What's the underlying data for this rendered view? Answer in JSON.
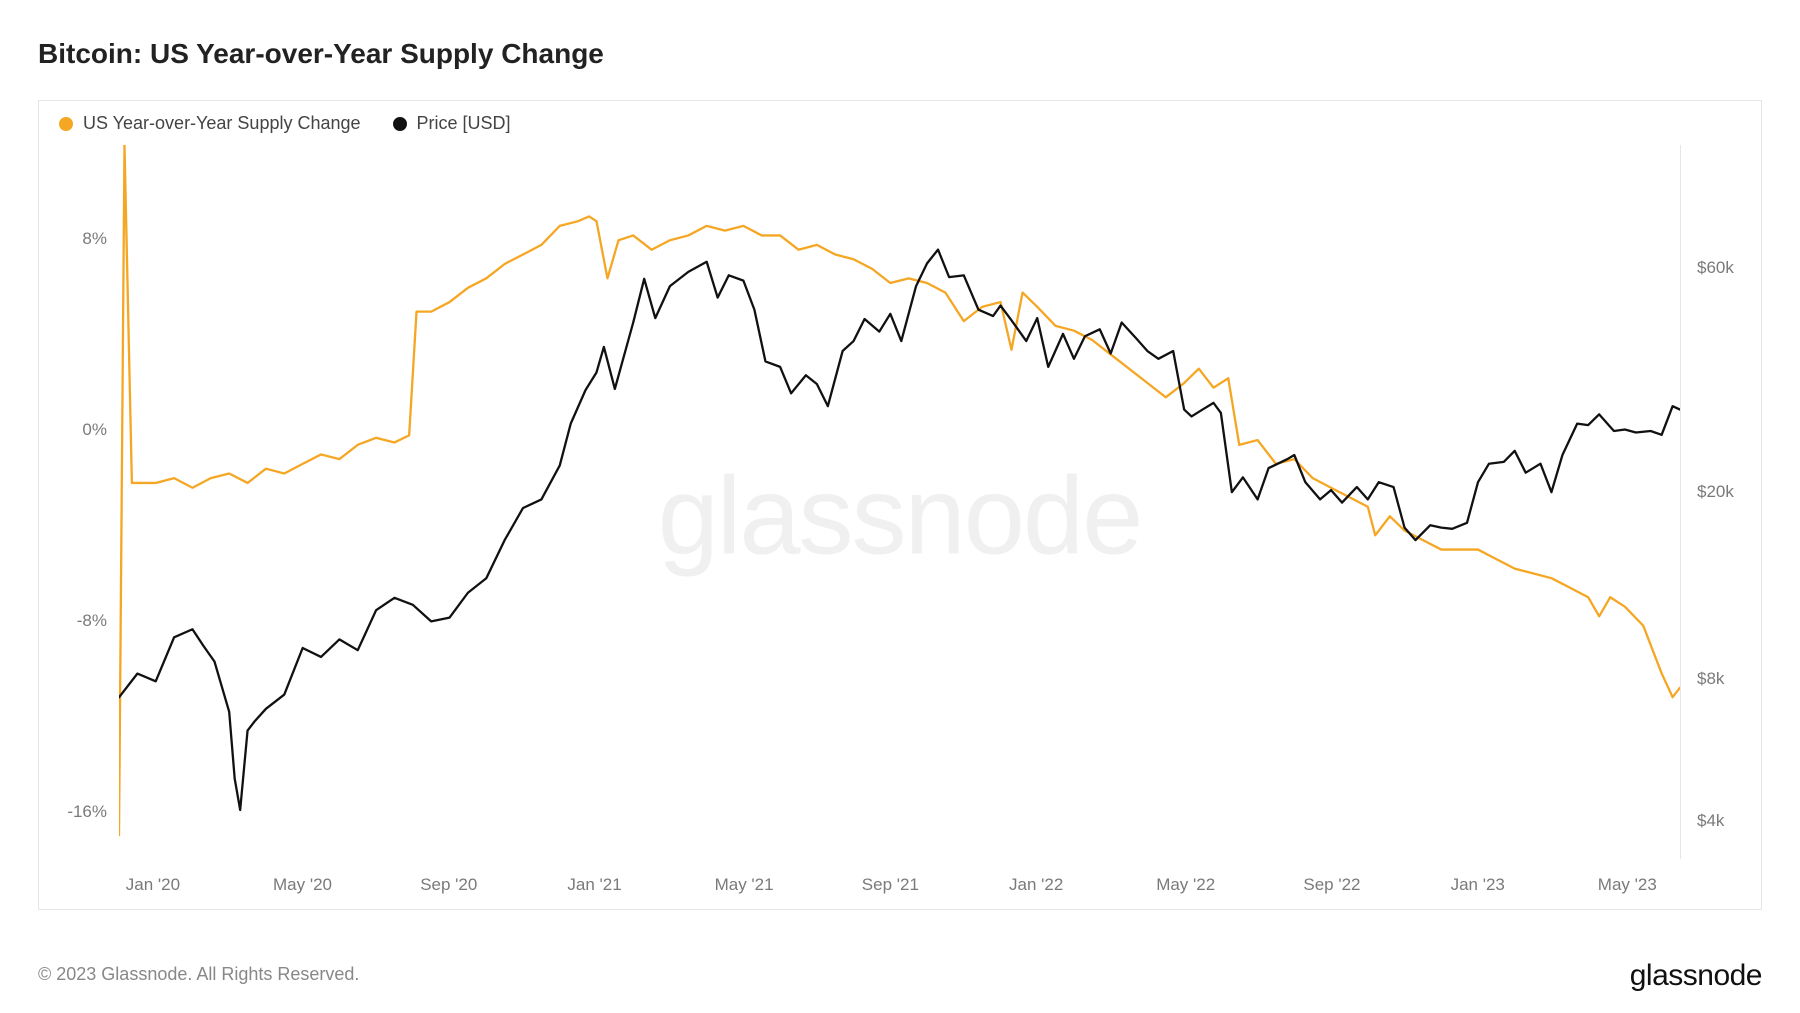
{
  "title": "Bitcoin: US Year-over-Year Supply Change",
  "watermark": "glassnode",
  "footer": "© 2023 Glassnode. All Rights Reserved.",
  "brand": "glassnode",
  "chart": {
    "type": "line",
    "background_color": "#ffffff",
    "frame_border_color": "#e6e6e6",
    "grid_color": "#e6e6e6",
    "label_color": "#7a7a7a",
    "label_fontsize": 17,
    "title_fontsize": 28,
    "title_weight": 600,
    "line_width": 2.3,
    "legend": {
      "position": "top-left",
      "fontsize": 18,
      "items": [
        {
          "label": "US Year-over-Year Supply Change",
          "color": "#f5a623"
        },
        {
          "label": "Price [USD]",
          "color": "#111111"
        }
      ]
    },
    "x_axis": {
      "domain": [
        0,
        42.5
      ],
      "ticks_at": [
        1,
        5,
        9,
        13,
        17,
        21,
        25,
        29,
        33,
        37,
        41
      ],
      "tick_labels": [
        "Jan '20",
        "May '20",
        "Sep '20",
        "Jan '21",
        "May '21",
        "Sep '21",
        "Jan '22",
        "May '22",
        "Sep '22",
        "Jan '23",
        "May '23"
      ]
    },
    "y_left": {
      "scale": "linear",
      "domain": [
        -18,
        12
      ],
      "ticks": [
        {
          "v": -16,
          "label": "-16%"
        },
        {
          "v": -8,
          "label": "-8%"
        },
        {
          "v": 0,
          "label": "0%"
        },
        {
          "v": 8,
          "label": "8%"
        }
      ]
    },
    "y_right": {
      "scale": "log",
      "domain": [
        3300,
        110000
      ],
      "ticks": [
        {
          "v": 4000,
          "label": "$4k"
        },
        {
          "v": 8000,
          "label": "$8k"
        },
        {
          "v": 20000,
          "label": "$20k"
        },
        {
          "v": 60000,
          "label": "$60k"
        }
      ]
    },
    "series": [
      {
        "name": "US Year-over-Year Supply Change",
        "axis": "left",
        "color": "#f5a623",
        "data": [
          [
            0.0,
            -17.0
          ],
          [
            0.15,
            12.0
          ],
          [
            0.35,
            -2.2
          ],
          [
            1.0,
            -2.2
          ],
          [
            1.5,
            -2.0
          ],
          [
            2.0,
            -2.4
          ],
          [
            2.5,
            -2.0
          ],
          [
            3.0,
            -1.8
          ],
          [
            3.5,
            -2.2
          ],
          [
            4.0,
            -1.6
          ],
          [
            4.5,
            -1.8
          ],
          [
            5.0,
            -1.4
          ],
          [
            5.5,
            -1.0
          ],
          [
            6.0,
            -1.2
          ],
          [
            6.5,
            -0.6
          ],
          [
            7.0,
            -0.3
          ],
          [
            7.5,
            -0.5
          ],
          [
            7.9,
            -0.2
          ],
          [
            8.1,
            5.0
          ],
          [
            8.5,
            5.0
          ],
          [
            9.0,
            5.4
          ],
          [
            9.5,
            6.0
          ],
          [
            10.0,
            6.4
          ],
          [
            10.5,
            7.0
          ],
          [
            11.0,
            7.4
          ],
          [
            11.5,
            7.8
          ],
          [
            12.0,
            8.6
          ],
          [
            12.5,
            8.8
          ],
          [
            12.8,
            9.0
          ],
          [
            13.0,
            8.8
          ],
          [
            13.3,
            6.4
          ],
          [
            13.6,
            8.0
          ],
          [
            14.0,
            8.2
          ],
          [
            14.5,
            7.6
          ],
          [
            15.0,
            8.0
          ],
          [
            15.5,
            8.2
          ],
          [
            16.0,
            8.6
          ],
          [
            16.5,
            8.4
          ],
          [
            17.0,
            8.6
          ],
          [
            17.5,
            8.2
          ],
          [
            18.0,
            8.2
          ],
          [
            18.5,
            7.6
          ],
          [
            19.0,
            7.8
          ],
          [
            19.5,
            7.4
          ],
          [
            20.0,
            7.2
          ],
          [
            20.5,
            6.8
          ],
          [
            21.0,
            6.2
          ],
          [
            21.5,
            6.4
          ],
          [
            22.0,
            6.2
          ],
          [
            22.5,
            5.8
          ],
          [
            23.0,
            4.6
          ],
          [
            23.5,
            5.2
          ],
          [
            24.0,
            5.4
          ],
          [
            24.3,
            3.4
          ],
          [
            24.6,
            5.8
          ],
          [
            25.0,
            5.2
          ],
          [
            25.5,
            4.4
          ],
          [
            26.0,
            4.2
          ],
          [
            26.5,
            3.8
          ],
          [
            27.0,
            3.2
          ],
          [
            27.5,
            2.6
          ],
          [
            28.0,
            2.0
          ],
          [
            28.5,
            1.4
          ],
          [
            29.0,
            2.0
          ],
          [
            29.4,
            2.6
          ],
          [
            29.8,
            1.8
          ],
          [
            30.2,
            2.2
          ],
          [
            30.5,
            -0.6
          ],
          [
            31.0,
            -0.4
          ],
          [
            31.5,
            -1.4
          ],
          [
            32.0,
            -1.2
          ],
          [
            32.5,
            -2.0
          ],
          [
            33.0,
            -2.4
          ],
          [
            33.5,
            -2.8
          ],
          [
            34.0,
            -3.2
          ],
          [
            34.2,
            -4.4
          ],
          [
            34.6,
            -3.6
          ],
          [
            35.0,
            -4.2
          ],
          [
            35.5,
            -4.6
          ],
          [
            36.0,
            -5.0
          ],
          [
            36.5,
            -5.0
          ],
          [
            37.0,
            -5.0
          ],
          [
            37.5,
            -5.4
          ],
          [
            38.0,
            -5.8
          ],
          [
            38.5,
            -6.0
          ],
          [
            39.0,
            -6.2
          ],
          [
            39.5,
            -6.6
          ],
          [
            40.0,
            -7.0
          ],
          [
            40.3,
            -7.8
          ],
          [
            40.6,
            -7.0
          ],
          [
            41.0,
            -7.4
          ],
          [
            41.5,
            -8.2
          ],
          [
            42.0,
            -10.2
          ],
          [
            42.3,
            -11.2
          ],
          [
            42.5,
            -10.8
          ]
        ]
      },
      {
        "name": "Price [USD]",
        "axis": "right",
        "color": "#111111",
        "data": [
          [
            0.0,
            7300
          ],
          [
            0.5,
            8200
          ],
          [
            1.0,
            7900
          ],
          [
            1.5,
            9800
          ],
          [
            2.0,
            10200
          ],
          [
            2.3,
            9400
          ],
          [
            2.6,
            8700
          ],
          [
            3.0,
            6800
          ],
          [
            3.15,
            4900
          ],
          [
            3.3,
            4200
          ],
          [
            3.5,
            6200
          ],
          [
            3.7,
            6500
          ],
          [
            4.0,
            6900
          ],
          [
            4.5,
            7400
          ],
          [
            5.0,
            9300
          ],
          [
            5.5,
            8900
          ],
          [
            6.0,
            9700
          ],
          [
            6.5,
            9200
          ],
          [
            7.0,
            11200
          ],
          [
            7.5,
            11900
          ],
          [
            8.0,
            11500
          ],
          [
            8.5,
            10600
          ],
          [
            9.0,
            10800
          ],
          [
            9.5,
            12200
          ],
          [
            10.0,
            13100
          ],
          [
            10.5,
            15800
          ],
          [
            11.0,
            18500
          ],
          [
            11.5,
            19300
          ],
          [
            12.0,
            22800
          ],
          [
            12.3,
            28000
          ],
          [
            12.7,
            33000
          ],
          [
            13.0,
            36000
          ],
          [
            13.2,
            40800
          ],
          [
            13.5,
            33200
          ],
          [
            14.0,
            46000
          ],
          [
            14.3,
            57000
          ],
          [
            14.6,
            47000
          ],
          [
            15.0,
            55000
          ],
          [
            15.5,
            59000
          ],
          [
            16.0,
            62000
          ],
          [
            16.3,
            52000
          ],
          [
            16.6,
            58000
          ],
          [
            17.0,
            56500
          ],
          [
            17.3,
            49000
          ],
          [
            17.6,
            38000
          ],
          [
            18.0,
            37000
          ],
          [
            18.3,
            32500
          ],
          [
            18.7,
            35500
          ],
          [
            19.0,
            34000
          ],
          [
            19.3,
            30500
          ],
          [
            19.7,
            40000
          ],
          [
            20.0,
            42000
          ],
          [
            20.3,
            46800
          ],
          [
            20.7,
            44000
          ],
          [
            21.0,
            48000
          ],
          [
            21.3,
            42000
          ],
          [
            21.7,
            55000
          ],
          [
            22.0,
            61500
          ],
          [
            22.3,
            65800
          ],
          [
            22.6,
            57500
          ],
          [
            23.0,
            58000
          ],
          [
            23.4,
            49000
          ],
          [
            23.8,
            47500
          ],
          [
            24.0,
            50000
          ],
          [
            24.3,
            46500
          ],
          [
            24.7,
            42000
          ],
          [
            25.0,
            47000
          ],
          [
            25.3,
            37000
          ],
          [
            25.7,
            43500
          ],
          [
            26.0,
            38500
          ],
          [
            26.3,
            43000
          ],
          [
            26.7,
            44500
          ],
          [
            27.0,
            39500
          ],
          [
            27.3,
            46000
          ],
          [
            27.7,
            42500
          ],
          [
            28.0,
            40000
          ],
          [
            28.3,
            38500
          ],
          [
            28.7,
            40000
          ],
          [
            29.0,
            30000
          ],
          [
            29.2,
            29000
          ],
          [
            29.5,
            30000
          ],
          [
            29.8,
            31000
          ],
          [
            30.0,
            29500
          ],
          [
            30.3,
            20000
          ],
          [
            30.6,
            21500
          ],
          [
            31.0,
            19300
          ],
          [
            31.3,
            22500
          ],
          [
            31.8,
            23500
          ],
          [
            32.0,
            24000
          ],
          [
            32.3,
            21000
          ],
          [
            32.7,
            19300
          ],
          [
            33.0,
            20200
          ],
          [
            33.3,
            19000
          ],
          [
            33.7,
            20500
          ],
          [
            34.0,
            19300
          ],
          [
            34.3,
            21000
          ],
          [
            34.7,
            20500
          ],
          [
            35.0,
            16800
          ],
          [
            35.3,
            15800
          ],
          [
            35.7,
            17000
          ],
          [
            36.0,
            16800
          ],
          [
            36.3,
            16700
          ],
          [
            36.7,
            17200
          ],
          [
            37.0,
            21000
          ],
          [
            37.3,
            23000
          ],
          [
            37.7,
            23200
          ],
          [
            38.0,
            24500
          ],
          [
            38.3,
            22000
          ],
          [
            38.7,
            23000
          ],
          [
            39.0,
            20000
          ],
          [
            39.3,
            24000
          ],
          [
            39.7,
            28000
          ],
          [
            40.0,
            27800
          ],
          [
            40.3,
            29300
          ],
          [
            40.7,
            27000
          ],
          [
            41.0,
            27200
          ],
          [
            41.3,
            26800
          ],
          [
            41.7,
            27000
          ],
          [
            42.0,
            26500
          ],
          [
            42.3,
            30500
          ],
          [
            42.5,
            30000
          ]
        ]
      }
    ]
  }
}
